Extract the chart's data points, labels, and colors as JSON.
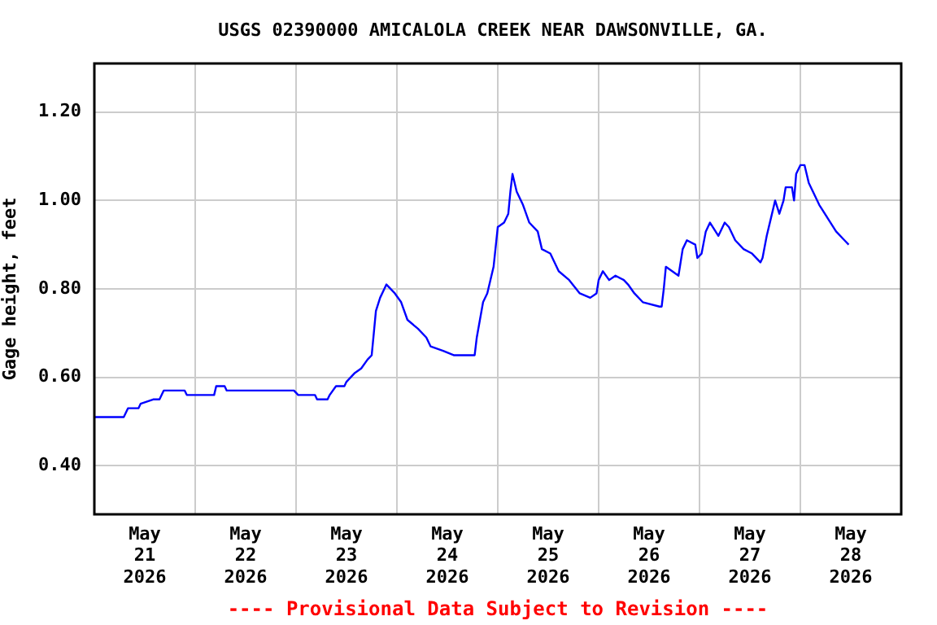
{
  "chart_data": {
    "type": "line",
    "title": "USGS 02390000 AMICALOLA CREEK NEAR DAWSONVILLE, GA.",
    "ylabel": "Gage height, feet",
    "annotations": [
      "---- Provisional Data Subject to Revision ----"
    ],
    "x": [
      "2026-05-21T00:00",
      "2026-05-21T07:00",
      "2026-05-21T08:00",
      "2026-05-21T10:30",
      "2026-05-21T11:00",
      "2026-05-21T14:00",
      "2026-05-21T15:30",
      "2026-05-21T16:30",
      "2026-05-21T21:30",
      "2026-05-21T22:00",
      "2026-05-22T04:30",
      "2026-05-22T05:00",
      "2026-05-22T07:00",
      "2026-05-22T07:30",
      "2026-05-22T23:30",
      "2026-05-23T00:30",
      "2026-05-23T04:30",
      "2026-05-23T05:00",
      "2026-05-23T07:30",
      "2026-05-23T08:00",
      "2026-05-23T09:30",
      "2026-05-23T11:30",
      "2026-05-23T12:00",
      "2026-05-23T13:00",
      "2026-05-23T14:00",
      "2026-05-23T15:30",
      "2026-05-23T17:00",
      "2026-05-23T18:00",
      "2026-05-23T18:30",
      "2026-05-23T19:00",
      "2026-05-23T20:00",
      "2026-05-23T21:00",
      "2026-05-23T21:30",
      "2026-05-23T23:30",
      "2026-05-24T01:00",
      "2026-05-24T02:30",
      "2026-05-24T05:00",
      "2026-05-24T07:00",
      "2026-05-24T08:00",
      "2026-05-24T11:00",
      "2026-05-24T13:30",
      "2026-05-24T18:30",
      "2026-05-24T19:00",
      "2026-05-24T20:30",
      "2026-05-24T21:30",
      "2026-05-24T23:00",
      "2026-05-25T00:00",
      "2026-05-25T01:30",
      "2026-05-25T02:30",
      "2026-05-25T03:00",
      "2026-05-25T03:30",
      "2026-05-25T04:30",
      "2026-05-25T06:00",
      "2026-05-25T07:30",
      "2026-05-25T09:30",
      "2026-05-25T10:30",
      "2026-05-25T12:30",
      "2026-05-25T14:30",
      "2026-05-25T17:00",
      "2026-05-25T19:30",
      "2026-05-25T22:00",
      "2026-05-25T23:30",
      "2026-05-26T00:00",
      "2026-05-26T01:00",
      "2026-05-26T02:30",
      "2026-05-26T04:00",
      "2026-05-26T06:00",
      "2026-05-26T07:00",
      "2026-05-26T08:30",
      "2026-05-26T10:30",
      "2026-05-26T14:30",
      "2026-05-26T15:00",
      "2026-05-26T15:30",
      "2026-05-26T16:00",
      "2026-05-26T17:30",
      "2026-05-26T19:00",
      "2026-05-26T20:00",
      "2026-05-26T21:00",
      "2026-05-26T23:00",
      "2026-05-26T23:30",
      "2026-05-27T00:30",
      "2026-05-27T01:30",
      "2026-05-27T02:30",
      "2026-05-27T04:30",
      "2026-05-27T06:00",
      "2026-05-27T07:00",
      "2026-05-27T08:30",
      "2026-05-27T10:30",
      "2026-05-27T12:30",
      "2026-05-27T14:30",
      "2026-05-27T15:00",
      "2026-05-27T16:00",
      "2026-05-27T17:00",
      "2026-05-27T18:00",
      "2026-05-27T19:00",
      "2026-05-27T20:00",
      "2026-05-27T20:30",
      "2026-05-27T22:00",
      "2026-05-27T22:30",
      "2026-05-27T23:00",
      "2026-05-28T00:00",
      "2026-05-28T01:00",
      "2026-05-28T02:00",
      "2026-05-28T03:00",
      "2026-05-28T04:30",
      "2026-05-28T06:30",
      "2026-05-28T08:30",
      "2026-05-28T10:30",
      "2026-05-28T11:30"
    ],
    "series": [
      {
        "color": "#0000ff",
        "values": [
          0.51,
          0.51,
          0.53,
          0.53,
          0.54,
          0.55,
          0.55,
          0.57,
          0.57,
          0.56,
          0.56,
          0.58,
          0.58,
          0.57,
          0.57,
          0.56,
          0.56,
          0.55,
          0.55,
          0.56,
          0.58,
          0.58,
          0.59,
          0.6,
          0.61,
          0.62,
          0.64,
          0.65,
          0.7,
          0.75,
          0.78,
          0.8,
          0.81,
          0.79,
          0.77,
          0.73,
          0.71,
          0.69,
          0.67,
          0.66,
          0.65,
          0.65,
          0.69,
          0.77,
          0.79,
          0.85,
          0.94,
          0.95,
          0.97,
          1.02,
          1.06,
          1.02,
          0.99,
          0.95,
          0.93,
          0.89,
          0.88,
          0.84,
          0.82,
          0.79,
          0.78,
          0.79,
          0.82,
          0.84,
          0.82,
          0.83,
          0.82,
          0.81,
          0.79,
          0.77,
          0.76,
          0.76,
          0.8,
          0.85,
          0.84,
          0.83,
          0.89,
          0.91,
          0.9,
          0.87,
          0.88,
          0.93,
          0.95,
          0.92,
          0.95,
          0.94,
          0.91,
          0.89,
          0.88,
          0.86,
          0.87,
          0.92,
          0.96,
          1.0,
          0.97,
          1.0,
          1.03,
          1.03,
          1.0,
          1.06,
          1.08,
          1.08,
          1.04,
          1.02,
          0.99,
          0.96,
          0.93,
          0.91,
          0.9
        ]
      }
    ],
    "xlim": [
      "2026-05-21",
      "2026-05-29"
    ],
    "xticks": [
      {
        "value": "2026-05-21T12:00",
        "label": "May\n21\n2026"
      },
      {
        "value": "2026-05-22T00:00",
        "label": null
      },
      {
        "value": "2026-05-22T12:00",
        "label": "May\n22\n2026"
      },
      {
        "value": "2026-05-23T00:00",
        "label": null
      },
      {
        "value": "2026-05-23T12:00",
        "label": "May\n23\n2026"
      },
      {
        "value": "2026-05-24T00:00",
        "label": null
      },
      {
        "value": "2026-05-24T12:00",
        "label": "May\n24\n2026"
      },
      {
        "value": "2026-05-25T00:00",
        "label": null
      },
      {
        "value": "2026-05-25T12:00",
        "label": "May\n25\n2026"
      },
      {
        "value": "2026-05-26T00:00",
        "label": null
      },
      {
        "value": "2026-05-26T12:00",
        "label": "May\n26\n2026"
      },
      {
        "value": "2026-05-27T00:00",
        "label": null
      },
      {
        "value": "2026-05-27T12:00",
        "label": "May\n27\n2026"
      },
      {
        "value": "2026-05-28T00:00",
        "label": null
      },
      {
        "value": "2026-05-28T12:00",
        "label": "May\n28\n2026"
      }
    ],
    "ylim": [
      0.29,
      1.31
    ],
    "yticks": [
      {
        "value": 0.4,
        "label": "0.40"
      },
      {
        "value": 0.6,
        "label": "0.60"
      },
      {
        "value": 0.8,
        "label": "0.80"
      },
      {
        "value": 1.0,
        "label": "1.00"
      },
      {
        "value": 1.2,
        "label": "1.20"
      }
    ],
    "grid": true,
    "legend": false,
    "marker": "none",
    "line_style": "solid"
  }
}
